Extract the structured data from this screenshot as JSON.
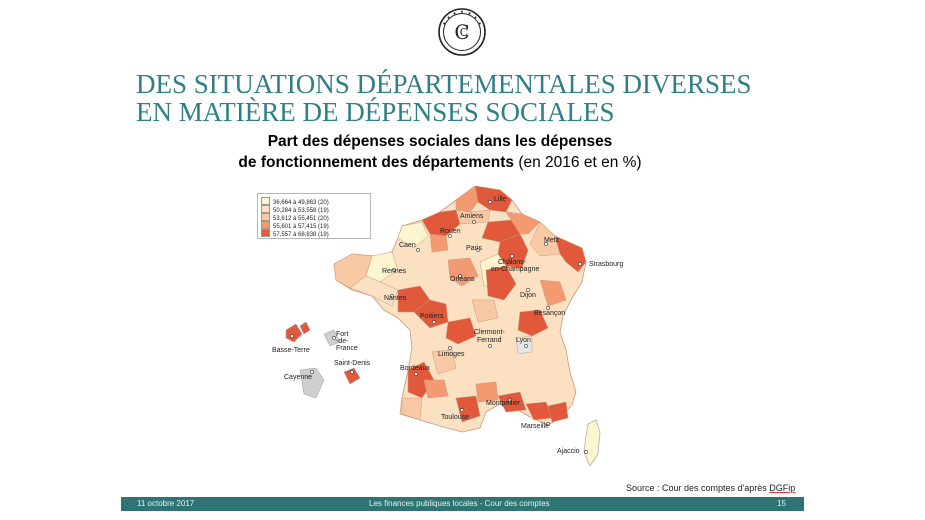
{
  "header": {
    "title_line1": "DES SITUATIONS DÉPARTEMENTALES DIVERSES",
    "title_line2": "EN MATIÈRE DE DÉPENSES SOCIALES",
    "subtitle_line1": "Part des dépenses sociales dans les dépenses",
    "subtitle_line2_bold": "de fonctionnement des départements",
    "subtitle_line2_rest": " (en 2016 et en %)"
  },
  "legend": {
    "items": [
      {
        "label": "36,664 à 49,863 (20)",
        "color": "#fdf5d0"
      },
      {
        "label": "50,284 à 53,558 (19)",
        "color": "#fbe0c2"
      },
      {
        "label": "53,612 à 55,451 (20)",
        "color": "#f9c9a6"
      },
      {
        "label": "55,601 à 57,415 (19)",
        "color": "#f39a72"
      },
      {
        "label": "57,557 à 68,838 (19)",
        "color": "#e2583a"
      }
    ]
  },
  "cities": [
    "Lille",
    "Amiens",
    "Rouen",
    "Caen",
    "Paris",
    "Metz",
    "Strasbourg",
    "Châlons-",
    "en-Champagne",
    "Rennes",
    "Orléans",
    "Nantes",
    "Dijon",
    "Besançon",
    "Poitiers",
    "Clermont-",
    "Ferrand",
    "Lyon",
    "Limoges",
    "Bordeaux",
    "Montpellier",
    "Toulouse",
    "Marseille",
    "Ajaccio"
  ],
  "overseas": [
    "Fort",
    "-de-",
    "France",
    "Basse-Terre",
    "Saint-Denis",
    "Cayenne"
  ],
  "source": {
    "prefix": "Source : Cour des comptes d'après ",
    "link": "DGFip"
  },
  "footer": {
    "date": "11 octobre 2017",
    "center": "Les finances publiques locales - Cour des comptes",
    "page": "15"
  }
}
